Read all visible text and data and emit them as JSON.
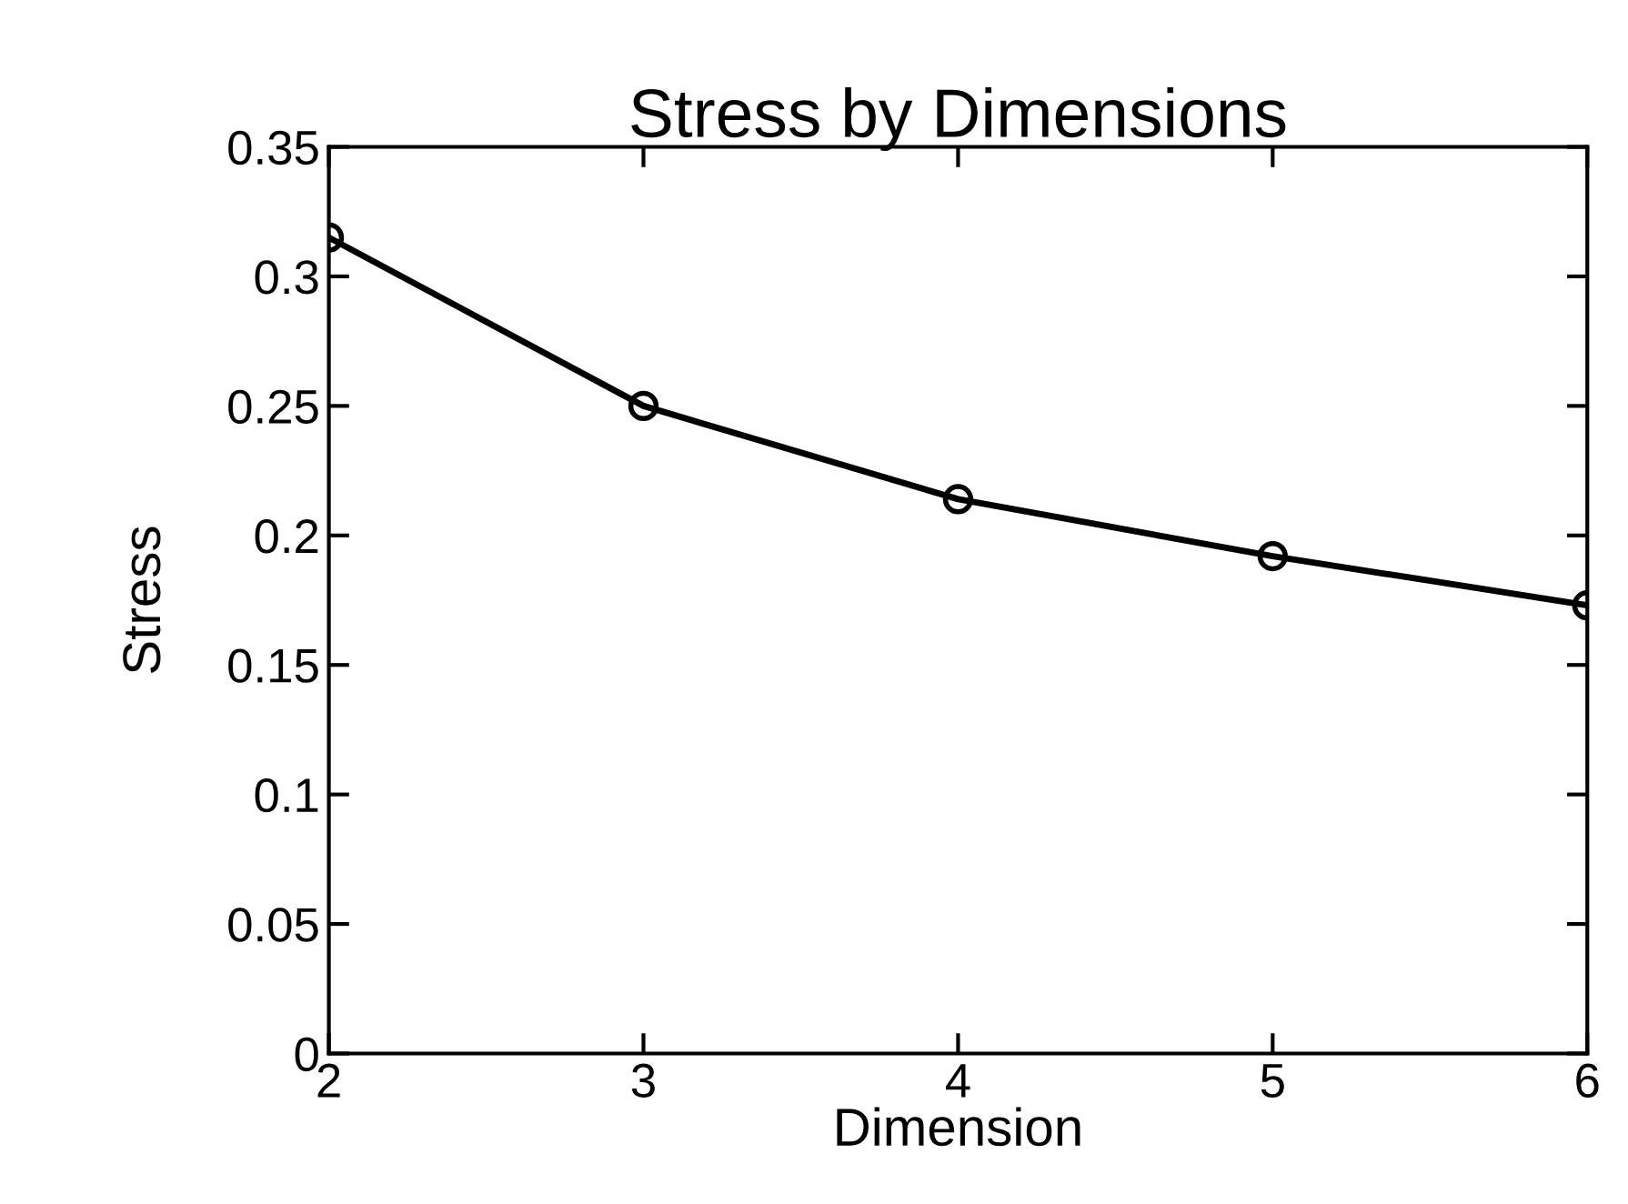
{
  "chart_data": {
    "type": "line",
    "title": "Stress by Dimensions",
    "xlabel": "Dimension",
    "ylabel": "Stress",
    "x": [
      2,
      3,
      4,
      5,
      6
    ],
    "series": [
      {
        "color": "#000000",
        "values": [
          0.315,
          0.25,
          0.214,
          0.192,
          0.173
        ]
      }
    ],
    "xlim": [
      2,
      6
    ],
    "xticks": [
      2,
      3,
      4,
      5,
      6
    ],
    "ylim": [
      0,
      0.35
    ],
    "yticks": [
      0,
      0.05,
      0.1,
      0.15,
      0.2,
      0.25,
      0.3,
      0.35
    ],
    "marker": "circle",
    "line_style": "solid",
    "grid": false,
    "legend": false
  }
}
